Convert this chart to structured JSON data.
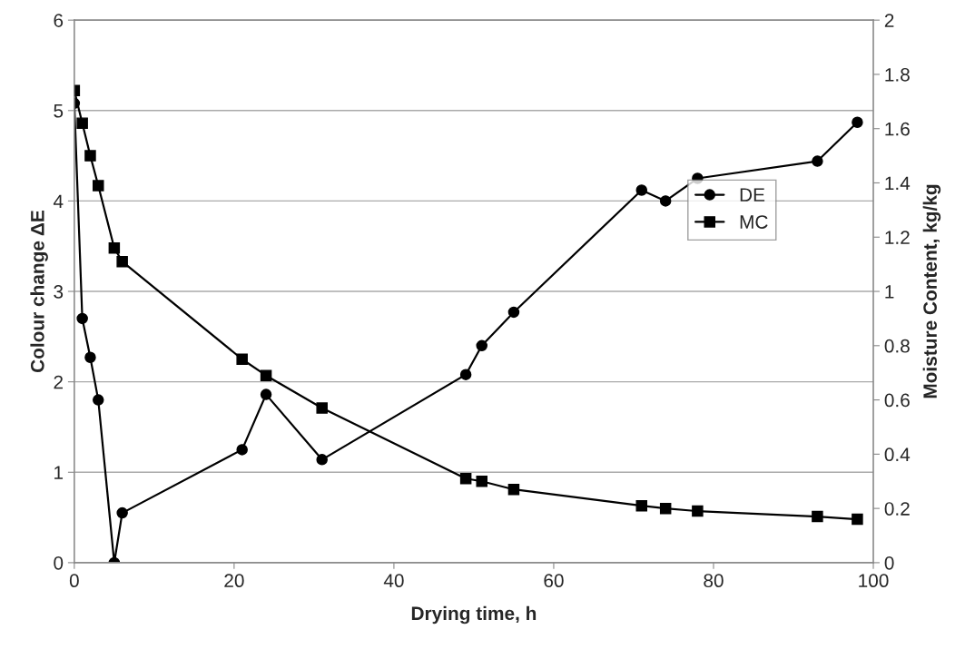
{
  "chart_data": {
    "type": "line",
    "xlabel": "Drying time, h",
    "ylabel": "Colour change ΔE",
    "y2label": "Moisture Content, kg/kg",
    "x": [
      0,
      1,
      2,
      3,
      5,
      6,
      21,
      24,
      31,
      49,
      51,
      55,
      71,
      74,
      78,
      93,
      98
    ],
    "series": [
      {
        "name": "DE",
        "color": "#000000",
        "marker": "circle",
        "values": [
          5.08,
          2.7,
          2.27,
          1.8,
          0,
          0.55,
          1.25,
          1.86,
          1.14,
          2.08,
          2.4,
          2.77,
          4.12,
          4.0,
          4.25,
          4.44,
          4.87
        ]
      },
      {
        "name": "MC",
        "color": "#000000",
        "marker": "square",
        "axis": "y2",
        "values": [
          1.74,
          1.62,
          1.5,
          1.39,
          1.16,
          1.11,
          0.75,
          0.69,
          0.57,
          0.31,
          0.3,
          0.27,
          0.21,
          0.2,
          0.19,
          0.17,
          0.16
        ]
      }
    ],
    "xlim": [
      0,
      100
    ],
    "xticks": [
      0,
      20,
      40,
      60,
      80,
      100
    ],
    "ylim": [
      0,
      6
    ],
    "yticks": [
      0,
      1,
      2,
      3,
      4,
      5,
      6
    ],
    "y2lim": [
      0,
      2
    ],
    "y2ticks": [
      0,
      0.2,
      0.4,
      0.6,
      0.8,
      1,
      1.2,
      1.4,
      1.6,
      1.8,
      2
    ],
    "grid": "y",
    "legend": "right",
    "line_style": "solid"
  }
}
